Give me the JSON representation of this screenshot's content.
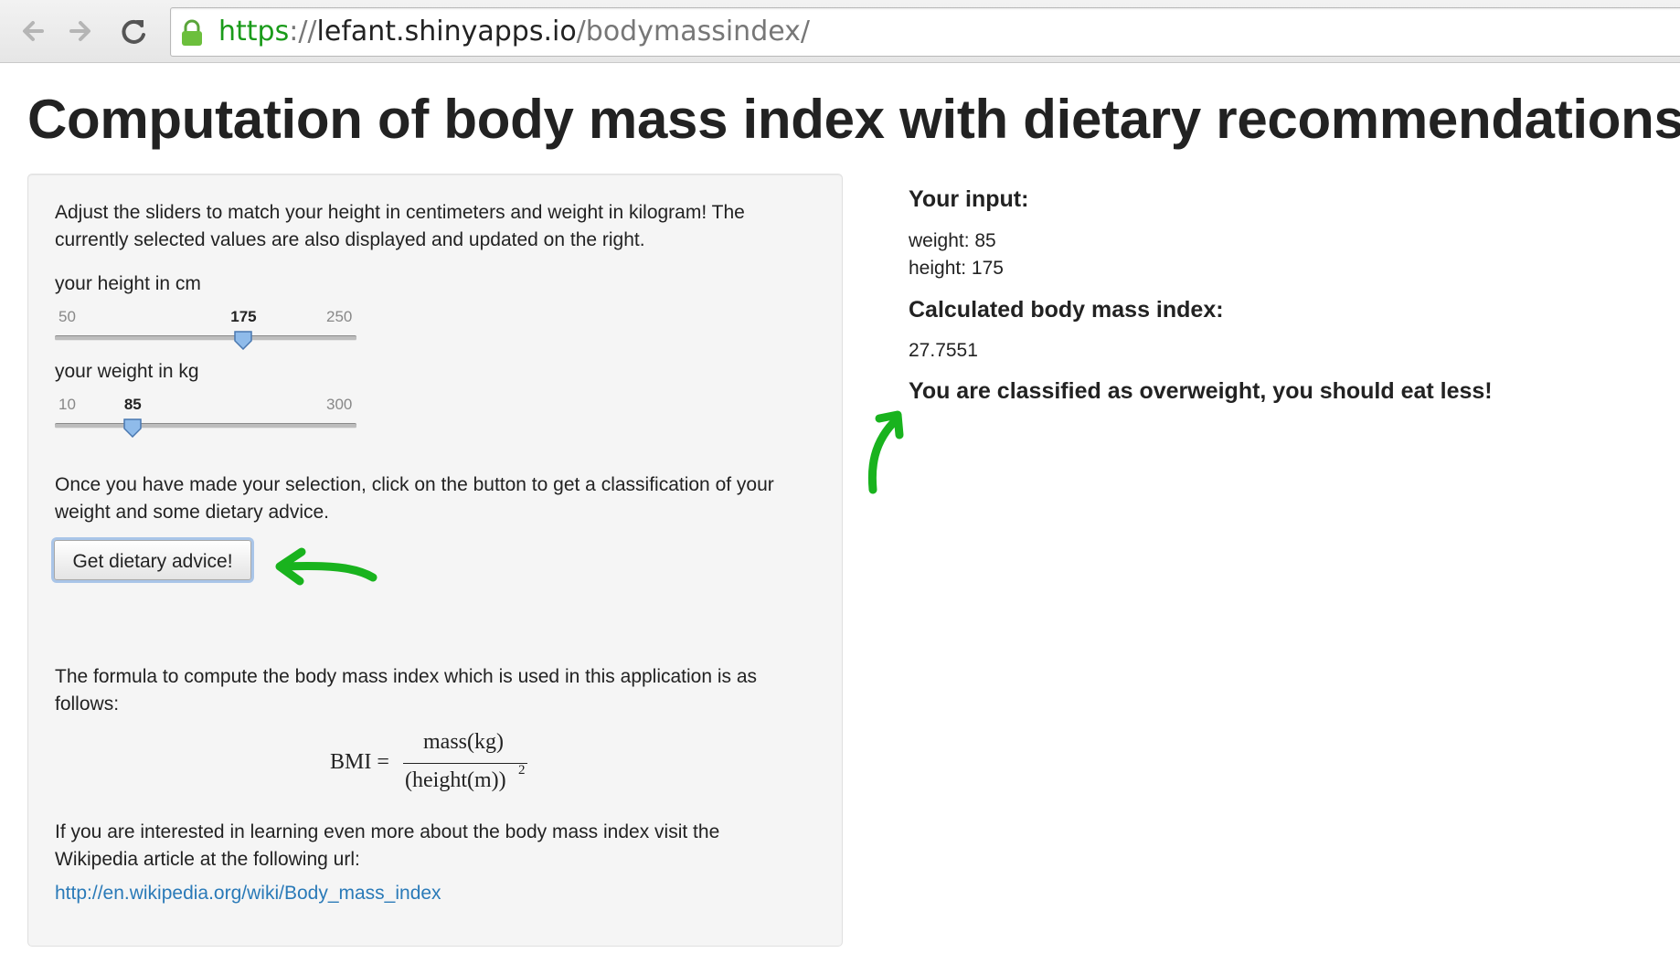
{
  "browser": {
    "url_scheme": "https",
    "url_sep": "://",
    "url_host": "lefant.shinyapps.io",
    "url_path": "/bodymassindex/"
  },
  "page": {
    "title": "Computation of body mass index with dietary recommendations"
  },
  "sidebar": {
    "intro": "Adjust the sliders to match your height in centimeters and weight in kilogram! The currently selected values are also displayed and updated on the right.",
    "height_slider": {
      "label": "your height in cm",
      "min": "50",
      "value": "175",
      "max": "250",
      "fraction": 0.625
    },
    "weight_slider": {
      "label": "your weight in kg",
      "min": "10",
      "value": "85",
      "max": "300",
      "fraction": 0.2586
    },
    "instructions": "Once you have made your selection, click on the button to get a classification of your weight and some dietary advice.",
    "button_label": "Get dietary advice!",
    "formula_intro": "The formula to compute the body mass index which is used in this application is as follows:",
    "formula": {
      "lhs": "BMI =",
      "numerator": "mass(kg)",
      "denominator": "(height(m))",
      "exponent": "2"
    },
    "wiki_text": "If you are interested in learning even more about the body mass index visit the Wikipedia article at the following url:",
    "wiki_url": "http://en.wikipedia.org/wiki/Body_mass_index"
  },
  "main": {
    "input_heading": "Your input:",
    "weight_line": "weight: 85",
    "height_line": "height: 175",
    "bmi_heading": "Calculated body mass index:",
    "bmi_value": "27.7551",
    "classification": "You are classified as overweight, you should eat less!"
  },
  "colors": {
    "annotation": "#19b31e",
    "link": "#2a7ab8",
    "focus_ring": "#a9c5e8"
  }
}
